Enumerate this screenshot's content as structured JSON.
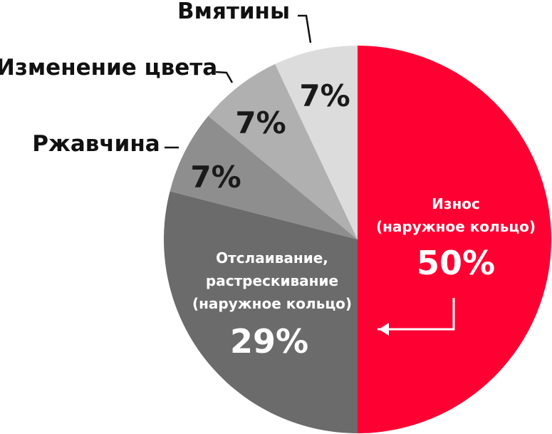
{
  "chart_data": {
    "type": "pie",
    "title": "",
    "slices": [
      {
        "label": [
          "Износ",
          "(наружное кольцо)"
        ],
        "value": 50,
        "display": "50%",
        "color": "#ff0033",
        "text_color": "#ffffff",
        "label_inside": true
      },
      {
        "label": [
          "Отслаивание,",
          "растрескивание",
          "(наружное кольцо)"
        ],
        "value": 29,
        "display": "29%",
        "color": "#6b6b6b",
        "text_color": "#ffffff",
        "label_inside": true
      },
      {
        "label": [
          "Ржавчина"
        ],
        "value": 7,
        "display": "7%",
        "color": "#8e8e8e",
        "text_color": "#1a1a1a",
        "label_inside": false
      },
      {
        "label": [
          "Изменение цвета"
        ],
        "value": 7,
        "display": "7%",
        "color": "#b0b0b0",
        "text_color": "#1a1a1a",
        "label_inside": false
      },
      {
        "label": [
          "Вмятины"
        ],
        "value": 7,
        "display": "7%",
        "color": "#dcdcdc",
        "text_color": "#1a1a1a",
        "label_inside": false
      }
    ],
    "start": "12 o'clock",
    "direction": "clockwise",
    "annotation": "arrow from 'Износ' percentage pointing into the 29% slice"
  }
}
